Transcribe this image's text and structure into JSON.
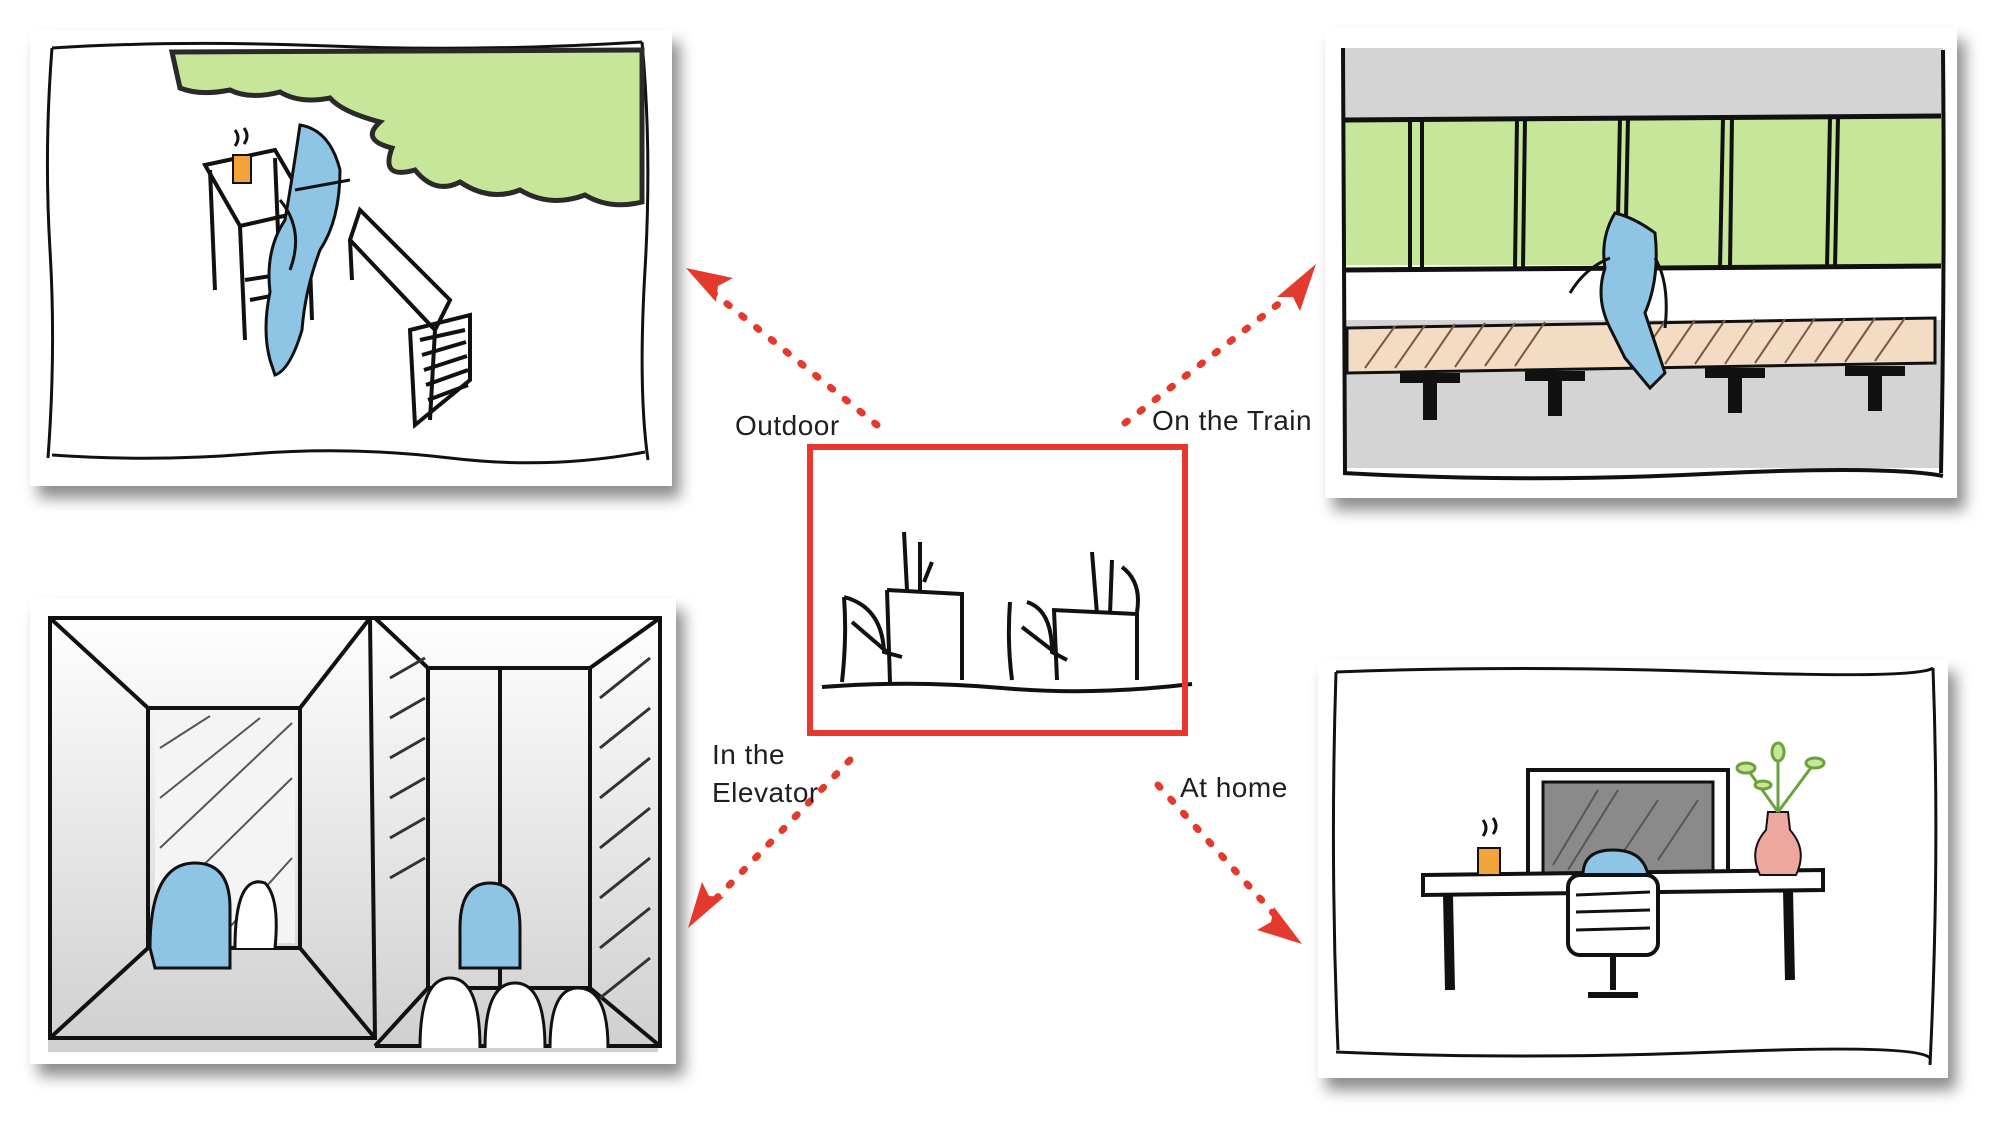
{
  "labels": {
    "outdoor": "Outdoor",
    "train": "On the Train",
    "elevator_line1": "In the",
    "elevator_line2": "Elevator",
    "home": "At home"
  },
  "colors": {
    "arrow": "#e43a2e",
    "center_frame": "#e8372c",
    "figure_blue": "#8ec4e4",
    "foliage_green": "#c6e79a",
    "train_gray": "#d4d4d4",
    "bench_peach": "#f4dcc4",
    "cup_orange": "#f2a33a",
    "vase_pink": "#eea79f"
  },
  "icons": {
    "arrow_head": "arrow-head-icon"
  }
}
